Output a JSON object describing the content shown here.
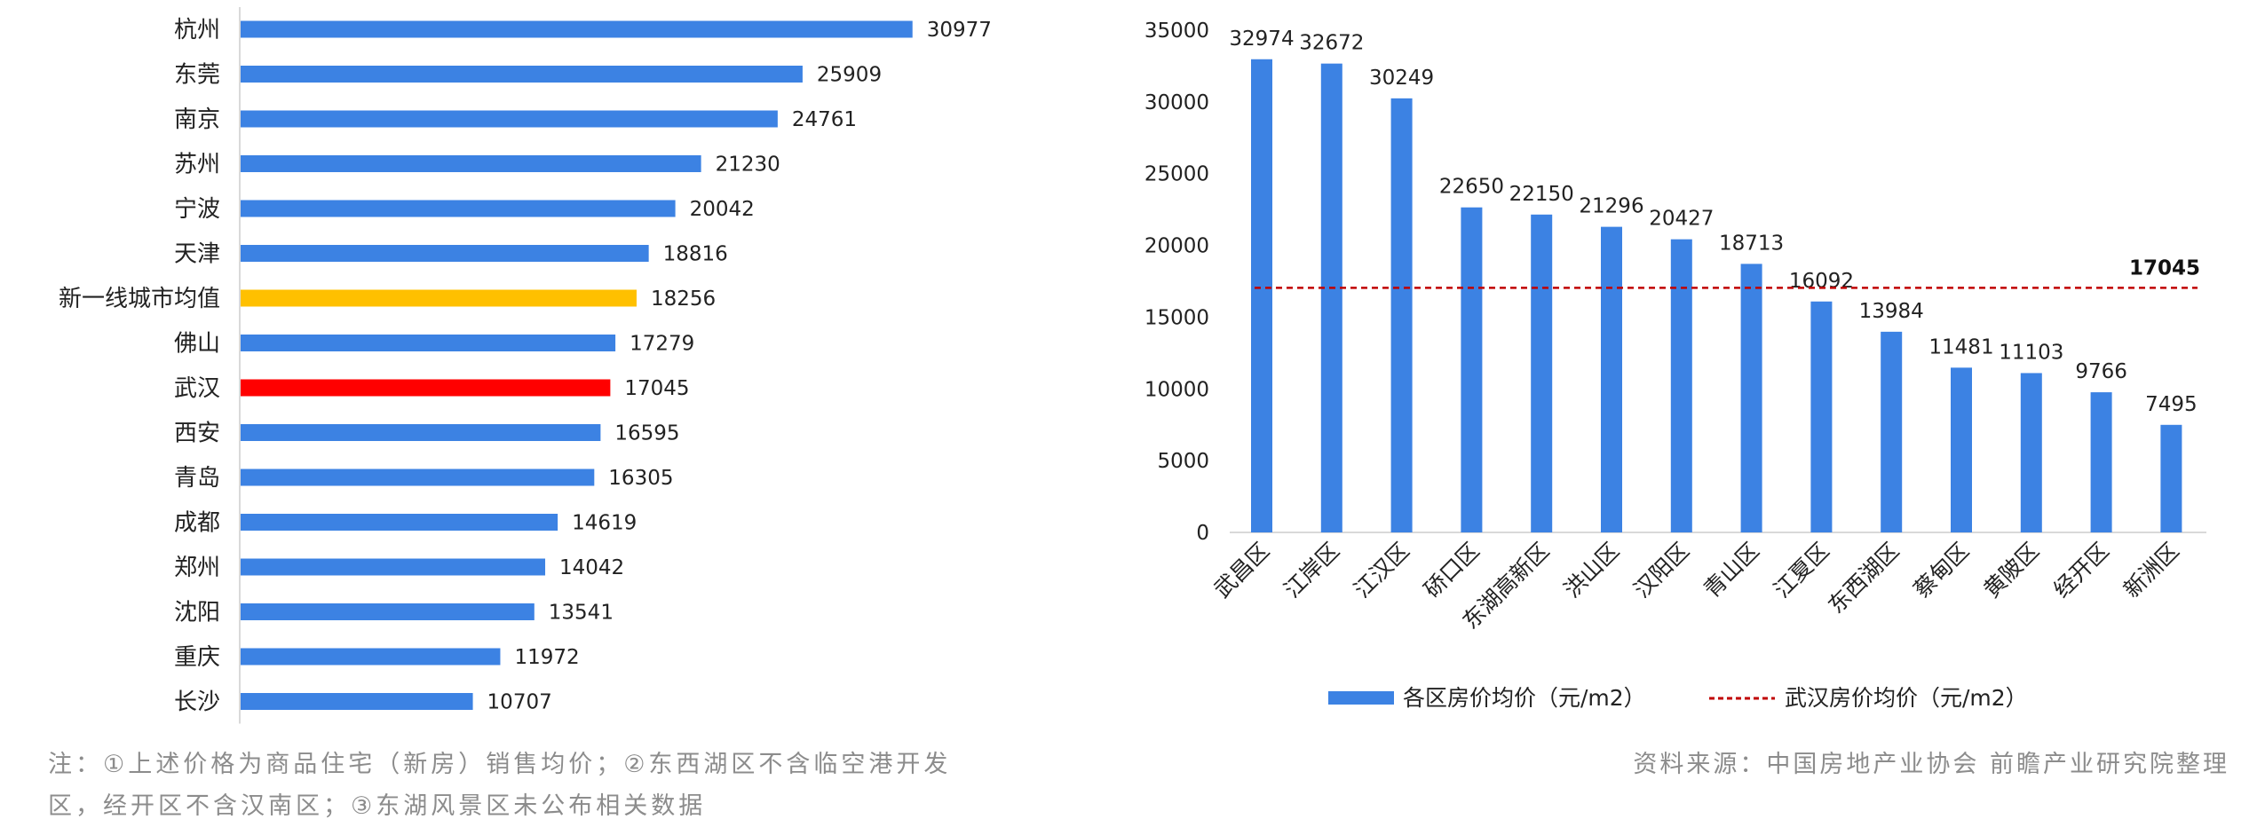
{
  "colors": {
    "bar": "#3C82E3",
    "highlight_avg": "#FFC000",
    "highlight_wuhan": "#FF0000",
    "avg_line": "#C00000",
    "axis": "#D9D9D9",
    "note": "#8C8C8C"
  },
  "chart_data": [
    {
      "type": "bar",
      "orientation": "horizontal",
      "categories": [
        "杭州",
        "东莞",
        "南京",
        "苏州",
        "宁波",
        "天津",
        "新一线城市均值",
        "佛山",
        "武汉",
        "西安",
        "青岛",
        "成都",
        "郑州",
        "沈阳",
        "重庆",
        "长沙"
      ],
      "values": [
        30977,
        25909,
        24761,
        21230,
        20042,
        18816,
        18256,
        17279,
        17045,
        16595,
        16305,
        14619,
        14042,
        13541,
        11972,
        10707
      ],
      "highlights": {
        "新一线城市均值": "#FFC000",
        "武汉": "#FF0000"
      },
      "xlim": [
        0,
        35000
      ]
    },
    {
      "type": "bar",
      "categories": [
        "武昌区",
        "江岸区",
        "江汉区",
        "硚口区",
        "东湖高新区",
        "洪山区",
        "汉阳区",
        "青山区",
        "江夏区",
        "东西湖区",
        "蔡甸区",
        "黄陂区",
        "经开区",
        "新洲区"
      ],
      "series": [
        {
          "name": "各区房价均价（元/m2）",
          "type": "bar",
          "values": [
            32974,
            32672,
            30249,
            22650,
            22150,
            21296,
            20427,
            18713,
            16092,
            13984,
            11481,
            11103,
            9766,
            7495
          ]
        },
        {
          "name": "武汉房价均价（元/m2）",
          "type": "reference_line",
          "value": 17045
        }
      ],
      "reference_label": "17045",
      "ylim": [
        0,
        35000
      ],
      "yticks": [
        "0",
        "5000",
        "10000",
        "15000",
        "20000",
        "25000",
        "30000",
        "35000"
      ],
      "legend_position": "bottom"
    }
  ],
  "footnote": {
    "line1": "注：①上述价格为商品住宅（新房）销售均价；②东西湖区不含临空港开发",
    "line2": "区，经开区不含汉南区；③东湖风景区未公布相关数据"
  },
  "source": "资料来源：中国房地产业协会  前瞻产业研究院整理"
}
